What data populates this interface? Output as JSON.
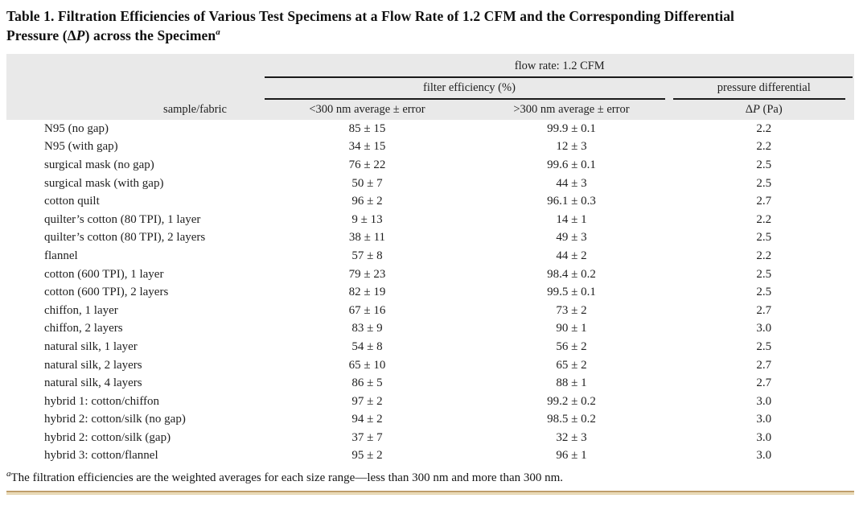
{
  "title": {
    "line1": "Table 1. Filtration Efficiencies of Various Test Specimens at a Flow Rate of 1.2 CFM and the Corresponding Differential",
    "line2_prefix": "Pressure (",
    "line2_delta": "Δ",
    "line2_p": "P",
    "line2_suffix": ") across the Specimen",
    "footnote_marker": "a"
  },
  "table": {
    "header": {
      "flow_rate": "flow rate: 1.2 CFM",
      "filter_efficiency": "filter efficiency (%)",
      "pressure_differential": "pressure differential",
      "sample_fabric": "sample/fabric",
      "lt300": "<300 nm average ± error",
      "gt300": ">300 nm average ± error",
      "dp_delta": "Δ",
      "dp_p": "P",
      "dp_unit": " (Pa)"
    },
    "rows": [
      {
        "sample": "N95 (no gap)",
        "lt300": "85 ± 15",
        "gt300": "99.9 ± 0.1",
        "dp": "2.2"
      },
      {
        "sample": "N95 (with gap)",
        "lt300": "34 ± 15",
        "gt300": "12 ± 3",
        "dp": "2.2"
      },
      {
        "sample": "surgical mask (no gap)",
        "lt300": "76 ± 22",
        "gt300": "99.6 ± 0.1",
        "dp": "2.5"
      },
      {
        "sample": "surgical mask (with gap)",
        "lt300": "50 ± 7",
        "gt300": "44 ± 3",
        "dp": "2.5"
      },
      {
        "sample": "cotton quilt",
        "lt300": "96 ± 2",
        "gt300": "96.1 ± 0.3",
        "dp": "2.7"
      },
      {
        "sample": "quilter’s cotton (80 TPI), 1 layer",
        "lt300": "9 ± 13",
        "gt300": "14 ± 1",
        "dp": "2.2"
      },
      {
        "sample": "quilter’s cotton (80 TPI), 2 layers",
        "lt300": "38 ± 11",
        "gt300": "49 ± 3",
        "dp": "2.5"
      },
      {
        "sample": "flannel",
        "lt300": "57 ± 8",
        "gt300": "44 ± 2",
        "dp": "2.2"
      },
      {
        "sample": "cotton (600 TPI), 1 layer",
        "lt300": "79 ± 23",
        "gt300": "98.4 ± 0.2",
        "dp": "2.5"
      },
      {
        "sample": "cotton (600 TPI), 2 layers",
        "lt300": "82 ± 19",
        "gt300": "99.5 ± 0.1",
        "dp": "2.5"
      },
      {
        "sample": "chiffon, 1 layer",
        "lt300": "67 ± 16",
        "gt300": "73 ± 2",
        "dp": "2.7"
      },
      {
        "sample": "chiffon, 2 layers",
        "lt300": "83 ± 9",
        "gt300": "90 ± 1",
        "dp": "3.0"
      },
      {
        "sample": "natural silk, 1 layer",
        "lt300": "54 ± 8",
        "gt300": "56 ± 2",
        "dp": "2.5"
      },
      {
        "sample": "natural silk, 2 layers",
        "lt300": "65 ± 10",
        "gt300": "65 ± 2",
        "dp": "2.7"
      },
      {
        "sample": "natural silk, 4 layers",
        "lt300": "86 ± 5",
        "gt300": "88 ± 1",
        "dp": "2.7"
      },
      {
        "sample": "hybrid 1: cotton/chiffon",
        "lt300": "97 ± 2",
        "gt300": "99.2 ± 0.2",
        "dp": "3.0"
      },
      {
        "sample": "hybrid 2: cotton/silk (no gap)",
        "lt300": "94 ± 2",
        "gt300": "98.5 ± 0.2",
        "dp": "3.0"
      },
      {
        "sample": "hybrid 2: cotton/silk (gap)",
        "lt300": "37 ± 7",
        "gt300": "32 ± 3",
        "dp": "3.0"
      },
      {
        "sample": "hybrid 3: cotton/flannel",
        "lt300": "95 ± 2",
        "gt300": "96 ± 1",
        "dp": "3.0"
      }
    ]
  },
  "footnote": {
    "marker": "a",
    "text": "The filtration efficiencies are the weighted averages for each size range—less than 300 nm and more than 300 nm."
  },
  "colors": {
    "header_bg": "#e9e9e9",
    "rule_black": "#1a1a1a",
    "bottom_rule_dark": "#bf9d6b",
    "bottom_rule_light": "#f0e3c5",
    "text": "#1f1f1f"
  }
}
